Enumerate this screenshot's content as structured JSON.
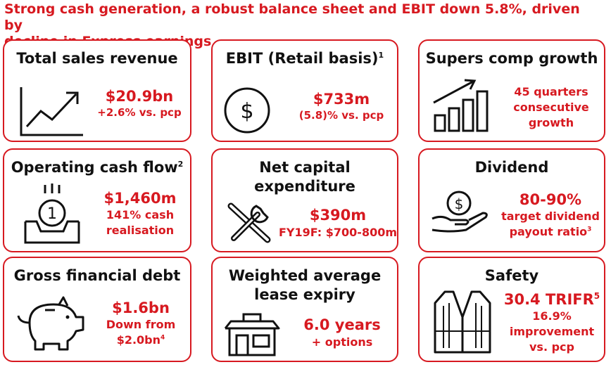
{
  "slide": {
    "title_line1": "Strong cash generation, a robust balance sheet and EBIT down 5.8%, driven by",
    "title_line2": "decline in Express earnings"
  },
  "cards": [
    {
      "title": "Total sales revenue",
      "icon": "growth-line-chart-icon",
      "value": "$20.9bn",
      "detail1": "+2.6% vs. pcp"
    },
    {
      "title": "EBIT (Retail basis)",
      "title_sup": "1",
      "icon": "dollar-coin-icon",
      "value": "$733m",
      "detail1": "(5.8)% vs. pcp"
    },
    {
      "title": "Supers comp growth",
      "icon": "growth-bar-chart-icon",
      "detail1": "45 quarters",
      "detail2": "consecutive",
      "detail3": "growth"
    },
    {
      "title": "Operating cash flow",
      "title_sup": "2",
      "icon": "cash-drawer-coin-icon",
      "value": "$1,460m",
      "detail1": "141% cash",
      "detail2": "realisation"
    },
    {
      "title_line1": "Net capital",
      "title_line2": "expenditure",
      "icon": "wrench-screwdriver-icon",
      "value": "$390m",
      "detail1": "FY19F: $700-800m"
    },
    {
      "title": "Dividend",
      "icon": "hand-holding-coin-icon",
      "value": "80-90%",
      "detail1": "target dividend",
      "detail2": "payout ratio",
      "detail2_sup": "3"
    },
    {
      "title": "Gross financial debt",
      "icon": "piggy-bank-icon",
      "value": "$1.6bn",
      "detail1": "Down from",
      "detail2": "$2.0bn",
      "detail2_sup": "4"
    },
    {
      "title_line1": "Weighted average",
      "title_line2": "lease expiry",
      "icon": "store-icon",
      "value": "6.0 years",
      "detail1": "+ options"
    },
    {
      "title": "Safety",
      "icon": "safety-vest-icon",
      "value": "30.4 TRIFR",
      "value_sup": "5",
      "detail1": "16.9%",
      "detail2": "improvement",
      "detail3": "vs. pcp"
    }
  ],
  "colors": {
    "accent": "#d71920",
    "text": "#111111",
    "background": "#ffffff"
  }
}
